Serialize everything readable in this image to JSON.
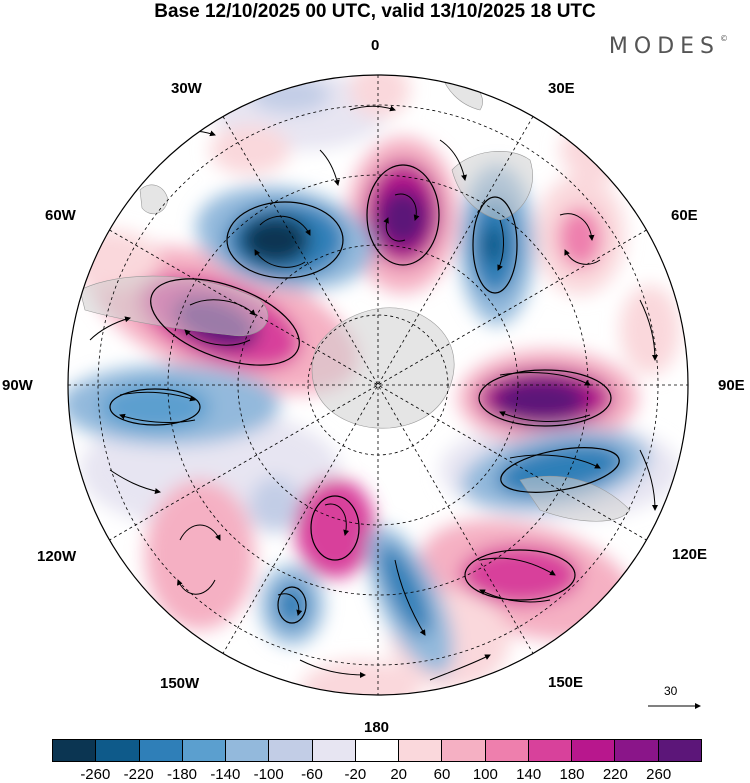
{
  "title": "Base 12/10/2025 00 UTC, valid 13/10/2025 18 UTC",
  "brand": {
    "name": "MODES",
    "mark": "©"
  },
  "map": {
    "projection": "south-polar-stereographic",
    "longitude_labels": {
      "top": "0",
      "top_right": "30E",
      "upper_right": "60E",
      "right": "90E",
      "lower_right": "120E",
      "bottom_right": "150E",
      "bottom": "180",
      "bottom_left": "150W",
      "lower_left": "120W",
      "left": "90W",
      "upper_left": "60W",
      "top_left": "30W"
    },
    "wind_reference_vector": "30"
  },
  "colorbar": {
    "colors": [
      "#0b3552",
      "#0e5a8a",
      "#2f7fb8",
      "#5b9fcf",
      "#93b9dc",
      "#c2cde6",
      "#e7e5f2",
      "#ffffff",
      "#fad8dc",
      "#f5b0c3",
      "#ee7fad",
      "#d8419b",
      "#b8178d",
      "#8a1589",
      "#5c1679"
    ],
    "ticks": [
      "-260",
      "-220",
      "-180",
      "-140",
      "-100",
      "-60",
      "-20",
      "20",
      "60",
      "100",
      "140",
      "180",
      "220",
      "260"
    ]
  }
}
